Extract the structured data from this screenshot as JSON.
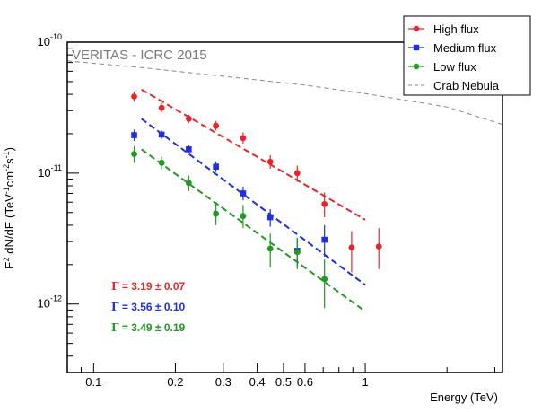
{
  "chart_data": {
    "type": "scatter",
    "x_scale": "log",
    "y_scale": "log",
    "xlabel": "Energy (TeV)",
    "ylabel": {
      "main": "E",
      "sup1": "2",
      "mid": " dN/dE (TeV",
      "sup2": "-1",
      "mid2": "cm",
      "sup3": "-2",
      "mid3": "s",
      "sup4": "-1",
      "end": ")"
    },
    "xlim": [
      0.08,
      3.2
    ],
    "ylim": [
      3e-13,
      1e-10
    ],
    "x_ticks": [
      {
        "value": 0.1,
        "label": "0.1"
      },
      {
        "value": 0.2,
        "label": "0.2"
      },
      {
        "value": 0.3,
        "label": "0.3"
      },
      {
        "value": 0.4,
        "label": "0.4"
      },
      {
        "value": 0.5,
        "label": "0.5"
      },
      {
        "value": 0.6,
        "label": "0.6"
      },
      {
        "value": 1,
        "label": "1"
      }
    ],
    "x_minor_ticks": [
      0.09,
      0.7,
      0.8,
      0.9,
      2,
      3
    ],
    "y_ticks": [
      {
        "value": 1e-10,
        "base": "10",
        "exp": "-10"
      },
      {
        "value": 1e-11,
        "base": "10",
        "exp": "-11"
      },
      {
        "value": 1e-12,
        "base": "10",
        "exp": "-12"
      }
    ],
    "y_minor_ticks": [
      4e-13,
      5e-13,
      6e-13,
      7e-13,
      8e-13,
      9e-13,
      2e-12,
      3e-12,
      4e-12,
      5e-12,
      6e-12,
      7e-12,
      8e-12,
      9e-12,
      2e-11,
      3e-11,
      4e-11,
      5e-11,
      6e-11,
      7e-11,
      8e-11,
      9e-11
    ],
    "annotation": "VERITAS - ICRC 2015",
    "fit_labels": [
      {
        "symbol": "Γ",
        "text": " = 3.19 ± 0.07",
        "color": "#e8262a"
      },
      {
        "symbol": "Γ",
        "text": " = 3.56 ± 0.10",
        "color": "#1e2ee0"
      },
      {
        "symbol": "Γ",
        "text": " = 3.49 ± 0.19",
        "color": "#229922"
      }
    ],
    "series": [
      {
        "name": "High flux",
        "color": "#e8262a",
        "marker": "circle",
        "points": [
          {
            "x": 0.141,
            "y": 3.85e-11,
            "lo": 3.5e-11,
            "hi": 4.2e-11
          },
          {
            "x": 0.178,
            "y": 3.15e-11,
            "lo": 2.9e-11,
            "hi": 3.45e-11
          },
          {
            "x": 0.224,
            "y": 2.6e-11,
            "lo": 2.42e-11,
            "hi": 2.8e-11
          },
          {
            "x": 0.282,
            "y": 2.3e-11,
            "lo": 2.12e-11,
            "hi": 2.5e-11
          },
          {
            "x": 0.355,
            "y": 1.85e-11,
            "lo": 1.68e-11,
            "hi": 2.05e-11
          },
          {
            "x": 0.447,
            "y": 1.22e-11,
            "lo": 1.08e-11,
            "hi": 1.37e-11
          },
          {
            "x": 0.562,
            "y": 1e-11,
            "lo": 8.6e-12,
            "hi": 1.14e-11
          },
          {
            "x": 0.708,
            "y": 5.8e-12,
            "lo": 4.6e-12,
            "hi": 7.1e-12
          },
          {
            "x": 0.891,
            "y": 2.7e-12,
            "lo": 1.75e-12,
            "hi": 3.6e-12
          },
          {
            "x": 1.122,
            "y": 2.75e-12,
            "lo": 1.85e-12,
            "hi": 3.8e-12
          }
        ],
        "fit": {
          "x0": 0.15,
          "y0": 4.35e-11,
          "x1": 1.0,
          "y1": 4.4e-12
        }
      },
      {
        "name": "Medium flux",
        "color": "#1e2ee0",
        "marker": "square",
        "points": [
          {
            "x": 0.141,
            "y": 1.95e-11,
            "lo": 1.76e-11,
            "hi": 2.15e-11
          },
          {
            "x": 0.178,
            "y": 1.97e-11,
            "lo": 1.82e-11,
            "hi": 2.12e-11
          },
          {
            "x": 0.224,
            "y": 1.52e-11,
            "lo": 1.41e-11,
            "hi": 1.64e-11
          },
          {
            "x": 0.282,
            "y": 1.12e-11,
            "lo": 1.02e-11,
            "hi": 1.23e-11
          },
          {
            "x": 0.355,
            "y": 7e-12,
            "lo": 6.2e-12,
            "hi": 7.9e-12
          },
          {
            "x": 0.447,
            "y": 4.6e-12,
            "lo": 3.9e-12,
            "hi": 5.3e-12
          },
          {
            "x": 0.562,
            "y": 2.55e-12,
            "lo": 1.95e-12,
            "hi": 3.2e-12
          },
          {
            "x": 0.708,
            "y": 3.1e-12,
            "lo": 2.3e-12,
            "hi": 4e-12
          }
        ],
        "fit": {
          "x0": 0.15,
          "y0": 2.6e-11,
          "x1": 1.0,
          "y1": 1.4e-12
        }
      },
      {
        "name": "Low flux",
        "color": "#229922",
        "marker": "circle",
        "points": [
          {
            "x": 0.141,
            "y": 1.4e-11,
            "lo": 1.2e-11,
            "hi": 1.6e-11
          },
          {
            "x": 0.178,
            "y": 1.2e-11,
            "lo": 1.07e-11,
            "hi": 1.34e-11
          },
          {
            "x": 0.224,
            "y": 8.4e-12,
            "lo": 7.3e-12,
            "hi": 9.6e-12
          },
          {
            "x": 0.282,
            "y": 4.9e-12,
            "lo": 4e-12,
            "hi": 5.9e-12
          },
          {
            "x": 0.355,
            "y": 4.7e-12,
            "lo": 3.8e-12,
            "hi": 5.7e-12
          },
          {
            "x": 0.447,
            "y": 2.65e-12,
            "lo": 1.9e-12,
            "hi": 3.45e-12
          },
          {
            "x": 0.562,
            "y": 2.5e-12,
            "lo": 1.85e-12,
            "hi": 3.2e-12
          },
          {
            "x": 0.708,
            "y": 1.55e-12,
            "lo": 9.3e-13,
            "hi": 2.2e-12
          }
        ],
        "fit": {
          "x0": 0.15,
          "y0": 1.52e-11,
          "x1": 1.0,
          "y1": 8.8e-13
        }
      },
      {
        "name": "Crab Nebula",
        "color": "#888888",
        "marker": "none",
        "line": [
          {
            "x": 0.08,
            "y": 7.2e-11
          },
          {
            "x": 0.15,
            "y": 6.4e-11
          },
          {
            "x": 0.3,
            "y": 5.5e-11
          },
          {
            "x": 0.6,
            "y": 4.7e-11
          },
          {
            "x": 1.0,
            "y": 4.05e-11
          },
          {
            "x": 2.0,
            "y": 3.2e-11
          },
          {
            "x": 3.2,
            "y": 2.35e-11
          }
        ]
      }
    ],
    "legend": {
      "position": "top-right",
      "entries": [
        {
          "label": "High flux",
          "color": "#e8262a",
          "marker": "circle"
        },
        {
          "label": "Medium flux",
          "color": "#1e2ee0",
          "marker": "square"
        },
        {
          "label": "Low flux",
          "color": "#229922",
          "marker": "circle"
        },
        {
          "label": "Crab Nebula",
          "color": "#888888",
          "marker": "dashed"
        }
      ]
    }
  }
}
